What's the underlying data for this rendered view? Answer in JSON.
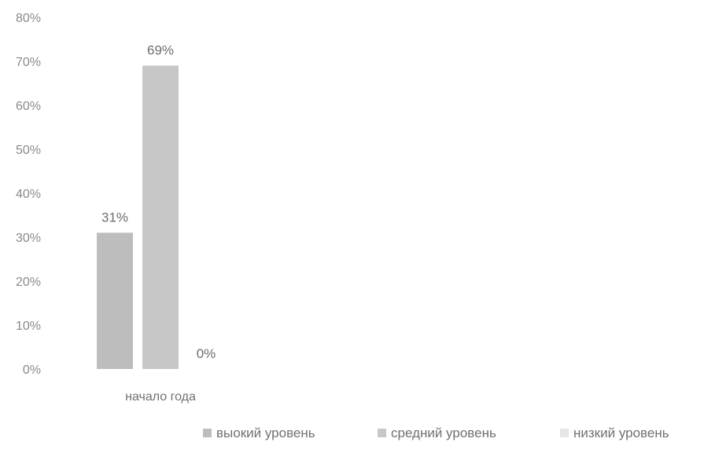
{
  "chart_data": {
    "type": "bar",
    "categories": [
      "начало года"
    ],
    "series": [
      {
        "name": "выокий уровень",
        "values": [
          31
        ],
        "color": "#bdbdbd",
        "label": "31%"
      },
      {
        "name": "средний уровень",
        "values": [
          69
        ],
        "color": "#c7c7c7",
        "label": "69%"
      },
      {
        "name": "низкий уровень",
        "values": [
          0
        ],
        "color": "#e6e6e6",
        "label": "0%"
      }
    ],
    "y_ticks": [
      "0%",
      "10%",
      "20%",
      "30%",
      "40%",
      "50%",
      "60%",
      "70%",
      "80%"
    ],
    "ylim": [
      0,
      80
    ],
    "y_unit": "%",
    "grid": false,
    "legend_position": "bottom-right"
  }
}
